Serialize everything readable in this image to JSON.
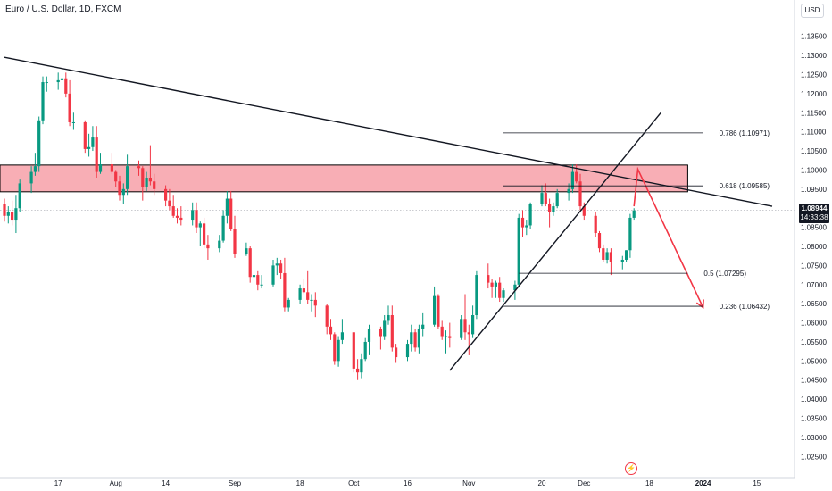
{
  "header": {
    "symbol_title": "Euro / U.S. Dollar, 1D, FXCM",
    "currency": "USD"
  },
  "price_tag": {
    "value": "1.08944",
    "countdown": "14:33:38"
  },
  "icons": {
    "flash": "lightning-icon"
  },
  "colors": {
    "bull": "#089981",
    "bear": "#f23645",
    "zone": "#f7a0a8",
    "arrow": "#f23645",
    "line": "#131722"
  },
  "chart_data": {
    "type": "candlestick",
    "title": "Euro / U.S. Dollar, 1D, FXCM",
    "ylim": [
      1.022,
      1.139
    ],
    "x_range": [
      "2023-07-03",
      "2024-01-19"
    ],
    "y_ticks": [
      "1.13500",
      "1.13000",
      "1.12500",
      "1.12000",
      "1.11500",
      "1.11000",
      "1.10500",
      "1.10000",
      "1.09500",
      "1.09000",
      "1.08500",
      "1.08000",
      "1.07500",
      "1.07000",
      "1.06500",
      "1.06000",
      "1.05500",
      "1.05000",
      "1.04500",
      "1.04000",
      "1.03500",
      "1.03000",
      "1.02500"
    ],
    "x_ticks": [
      {
        "label": "17",
        "date": "2023-07-17"
      },
      {
        "label": "Aug",
        "date": "2023-08-01"
      },
      {
        "label": "14",
        "date": "2023-08-14"
      },
      {
        "label": "Sep",
        "date": "2023-09-01"
      },
      {
        "label": "18",
        "date": "2023-09-18"
      },
      {
        "label": "Oct",
        "date": "2023-10-02"
      },
      {
        "label": "16",
        "date": "2023-10-16"
      },
      {
        "label": "Nov",
        "date": "2023-11-01"
      },
      {
        "label": "20",
        "date": "2023-11-20"
      },
      {
        "label": "Dec",
        "date": "2023-12-01"
      },
      {
        "label": "18",
        "date": "2023-12-18"
      },
      {
        "label": "2024",
        "date": "2024-01-01"
      },
      {
        "label": "15",
        "date": "2024-01-15"
      }
    ],
    "candles": [
      {
        "d": "2023-07-03",
        "o": 1.091,
        "h": 1.0925,
        "l": 1.0865,
        "c": 1.088
      },
      {
        "d": "2023-07-04",
        "o": 1.088,
        "h": 1.0905,
        "l": 1.086,
        "c": 1.089
      },
      {
        "d": "2023-07-05",
        "o": 1.089,
        "h": 1.092,
        "l": 1.0855,
        "c": 1.087
      },
      {
        "d": "2023-07-06",
        "o": 1.087,
        "h": 1.0935,
        "l": 1.0835,
        "c": 1.09
      },
      {
        "d": "2023-07-07",
        "o": 1.09,
        "h": 1.0975,
        "l": 1.089,
        "c": 1.0965
      },
      {
        "d": "2023-07-10",
        "o": 1.0965,
        "h": 1.101,
        "l": 1.094,
        "c": 1.0995
      },
      {
        "d": "2023-07-11",
        "o": 1.0995,
        "h": 1.1045,
        "l": 1.0985,
        "c": 1.101
      },
      {
        "d": "2023-07-12",
        "o": 1.101,
        "h": 1.114,
        "l": 1.0995,
        "c": 1.113
      },
      {
        "d": "2023-07-13",
        "o": 1.113,
        "h": 1.1245,
        "l": 1.112,
        "c": 1.123
      },
      {
        "d": "2023-07-14",
        "o": 1.123,
        "h": 1.1245,
        "l": 1.1205,
        "c": 1.123
      },
      {
        "d": "2023-07-17",
        "o": 1.123,
        "h": 1.1255,
        "l": 1.121,
        "c": 1.1235
      },
      {
        "d": "2023-07-18",
        "o": 1.1235,
        "h": 1.1275,
        "l": 1.1215,
        "c": 1.124
      },
      {
        "d": "2023-07-19",
        "o": 1.124,
        "h": 1.1255,
        "l": 1.119,
        "c": 1.12
      },
      {
        "d": "2023-07-20",
        "o": 1.12,
        "h": 1.1235,
        "l": 1.1115,
        "c": 1.1125
      },
      {
        "d": "2023-07-21",
        "o": 1.1125,
        "h": 1.115,
        "l": 1.1105,
        "c": 1.1125
      },
      {
        "d": "2023-07-24",
        "o": 1.1125,
        "h": 1.113,
        "l": 1.1045,
        "c": 1.1055
      },
      {
        "d": "2023-07-25",
        "o": 1.1055,
        "h": 1.1095,
        "l": 1.1035,
        "c": 1.106
      },
      {
        "d": "2023-07-26",
        "o": 1.106,
        "h": 1.1115,
        "l": 1.105,
        "c": 1.1085
      },
      {
        "d": "2023-07-27",
        "o": 1.1085,
        "h": 1.1115,
        "l": 1.098,
        "c": 1.0995
      },
      {
        "d": "2023-07-28",
        "o": 1.0995,
        "h": 1.1045,
        "l": 1.099,
        "c": 1.1015
      },
      {
        "d": "2023-07-31",
        "o": 1.1015,
        "h": 1.1045,
        "l": 1.099,
        "c": 1.0995
      },
      {
        "d": "2023-08-01",
        "o": 1.0995,
        "h": 1.1,
        "l": 1.0955,
        "c": 1.097
      },
      {
        "d": "2023-08-02",
        "o": 1.097,
        "h": 1.0985,
        "l": 1.092,
        "c": 1.0935
      },
      {
        "d": "2023-08-03",
        "o": 1.0935,
        "h": 1.0965,
        "l": 1.091,
        "c": 1.095
      },
      {
        "d": "2023-08-04",
        "o": 1.095,
        "h": 1.104,
        "l": 1.0935,
        "c": 1.101
      },
      {
        "d": "2023-08-07",
        "o": 1.101,
        "h": 1.1025,
        "l": 1.0985,
        "c": 1.1005
      },
      {
        "d": "2023-08-08",
        "o": 1.1005,
        "h": 1.101,
        "l": 1.092,
        "c": 1.0955
      },
      {
        "d": "2023-08-09",
        "o": 1.0955,
        "h": 1.0995,
        "l": 1.0945,
        "c": 1.098
      },
      {
        "d": "2023-08-10",
        "o": 1.098,
        "h": 1.1065,
        "l": 1.096,
        "c": 1.097
      },
      {
        "d": "2023-08-11",
        "o": 1.097,
        "h": 1.099,
        "l": 1.0935,
        "c": 1.095
      },
      {
        "d": "2023-08-14",
        "o": 1.095,
        "h": 1.096,
        "l": 1.0905,
        "c": 1.092
      },
      {
        "d": "2023-08-15",
        "o": 1.092,
        "h": 1.095,
        "l": 1.0895,
        "c": 1.0905
      },
      {
        "d": "2023-08-16",
        "o": 1.0905,
        "h": 1.0935,
        "l": 1.0875,
        "c": 1.088
      },
      {
        "d": "2023-08-17",
        "o": 1.088,
        "h": 1.09,
        "l": 1.086,
        "c": 1.0875
      },
      {
        "d": "2023-08-18",
        "o": 1.0875,
        "h": 1.0905,
        "l": 1.0855,
        "c": 1.087
      },
      {
        "d": "2023-08-21",
        "o": 1.087,
        "h": 1.0915,
        "l": 1.0855,
        "c": 1.0895
      },
      {
        "d": "2023-08-22",
        "o": 1.0895,
        "h": 1.0915,
        "l": 1.0835,
        "c": 1.085
      },
      {
        "d": "2023-08-23",
        "o": 1.085,
        "h": 1.0865,
        "l": 1.08,
        "c": 1.086
      },
      {
        "d": "2023-08-24",
        "o": 1.086,
        "h": 1.0875,
        "l": 1.0795,
        "c": 1.0805
      },
      {
        "d": "2023-08-25",
        "o": 1.0805,
        "h": 1.083,
        "l": 1.0765,
        "c": 1.0795
      },
      {
        "d": "2023-08-28",
        "o": 1.0795,
        "h": 1.083,
        "l": 1.0785,
        "c": 1.0815
      },
      {
        "d": "2023-08-29",
        "o": 1.0815,
        "h": 1.0895,
        "l": 1.081,
        "c": 1.088
      },
      {
        "d": "2023-08-30",
        "o": 1.088,
        "h": 1.0945,
        "l": 1.086,
        "c": 1.0925
      },
      {
        "d": "2023-08-31",
        "o": 1.0925,
        "h": 1.0945,
        "l": 1.084,
        "c": 1.0845
      },
      {
        "d": "2023-09-01",
        "o": 1.0845,
        "h": 1.088,
        "l": 1.077,
        "c": 1.078
      },
      {
        "d": "2023-09-04",
        "o": 1.078,
        "h": 1.081,
        "l": 1.0775,
        "c": 1.0795
      },
      {
        "d": "2023-09-05",
        "o": 1.0795,
        "h": 1.08,
        "l": 1.0705,
        "c": 1.072
      },
      {
        "d": "2023-09-06",
        "o": 1.072,
        "h": 1.0735,
        "l": 1.07,
        "c": 1.0725
      },
      {
        "d": "2023-09-07",
        "o": 1.0725,
        "h": 1.0735,
        "l": 1.0685,
        "c": 1.07
      },
      {
        "d": "2023-09-08",
        "o": 1.07,
        "h": 1.0725,
        "l": 1.069,
        "c": 1.07
      },
      {
        "d": "2023-09-11",
        "o": 1.07,
        "h": 1.0765,
        "l": 1.0695,
        "c": 1.075
      },
      {
        "d": "2023-09-12",
        "o": 1.075,
        "h": 1.077,
        "l": 1.0725,
        "c": 1.0755
      },
      {
        "d": "2023-09-13",
        "o": 1.0755,
        "h": 1.0765,
        "l": 1.0715,
        "c": 1.073
      },
      {
        "d": "2023-09-14",
        "o": 1.073,
        "h": 1.077,
        "l": 1.063,
        "c": 1.064
      },
      {
        "d": "2023-09-15",
        "o": 1.064,
        "h": 1.0665,
        "l": 1.063,
        "c": 1.066
      },
      {
        "d": "2023-09-18",
        "o": 1.066,
        "h": 1.07,
        "l": 1.065,
        "c": 1.069
      },
      {
        "d": "2023-09-19",
        "o": 1.069,
        "h": 1.0715,
        "l": 1.0675,
        "c": 1.068
      },
      {
        "d": "2023-09-20",
        "o": 1.068,
        "h": 1.0735,
        "l": 1.065,
        "c": 1.066
      },
      {
        "d": "2023-09-21",
        "o": 1.066,
        "h": 1.0675,
        "l": 1.063,
        "c": 1.066
      },
      {
        "d": "2023-09-22",
        "o": 1.066,
        "h": 1.068,
        "l": 1.0615,
        "c": 1.0645
      },
      {
        "d": "2023-09-25",
        "o": 1.0645,
        "h": 1.065,
        "l": 1.057,
        "c": 1.059
      },
      {
        "d": "2023-09-26",
        "o": 1.059,
        "h": 1.061,
        "l": 1.0555,
        "c": 1.057
      },
      {
        "d": "2023-09-27",
        "o": 1.057,
        "h": 1.0575,
        "l": 1.049,
        "c": 1.05
      },
      {
        "d": "2023-09-28",
        "o": 1.05,
        "h": 1.0565,
        "l": 1.0485,
        "c": 1.0555
      },
      {
        "d": "2023-09-29",
        "o": 1.0555,
        "h": 1.061,
        "l": 1.0545,
        "c": 1.0575
      },
      {
        "d": "2023-10-02",
        "o": 1.0575,
        "h": 1.0575,
        "l": 1.047,
        "c": 1.048
      },
      {
        "d": "2023-10-03",
        "o": 1.048,
        "h": 1.0505,
        "l": 1.045,
        "c": 1.047
      },
      {
        "d": "2023-10-04",
        "o": 1.047,
        "h": 1.052,
        "l": 1.0455,
        "c": 1.0505
      },
      {
        "d": "2023-10-05",
        "o": 1.0505,
        "h": 1.056,
        "l": 1.05,
        "c": 1.055
      },
      {
        "d": "2023-10-06",
        "o": 1.055,
        "h": 1.0595,
        "l": 1.0515,
        "c": 1.0585
      },
      {
        "d": "2023-10-09",
        "o": 1.0585,
        "h": 1.059,
        "l": 1.053,
        "c": 1.0565
      },
      {
        "d": "2023-10-10",
        "o": 1.0565,
        "h": 1.062,
        "l": 1.0555,
        "c": 1.0605
      },
      {
        "d": "2023-10-11",
        "o": 1.0605,
        "h": 1.0645,
        "l": 1.0595,
        "c": 1.062
      },
      {
        "d": "2023-10-12",
        "o": 1.062,
        "h": 1.0645,
        "l": 1.0525,
        "c": 1.0535
      },
      {
        "d": "2023-10-13",
        "o": 1.0535,
        "h": 1.0545,
        "l": 1.0495,
        "c": 1.051
      },
      {
        "d": "2023-10-16",
        "o": 1.051,
        "h": 1.0555,
        "l": 1.05,
        "c": 1.0545
      },
      {
        "d": "2023-10-17",
        "o": 1.0545,
        "h": 1.0595,
        "l": 1.0525,
        "c": 1.0575
      },
      {
        "d": "2023-10-18",
        "o": 1.0575,
        "h": 1.0585,
        "l": 1.0525,
        "c": 1.0535
      },
      {
        "d": "2023-10-19",
        "o": 1.0535,
        "h": 1.0595,
        "l": 1.052,
        "c": 1.0585
      },
      {
        "d": "2023-10-20",
        "o": 1.0585,
        "h": 1.0625,
        "l": 1.0565,
        "c": 1.0595
      },
      {
        "d": "2023-10-23",
        "o": 1.0595,
        "h": 1.0695,
        "l": 1.059,
        "c": 1.067
      },
      {
        "d": "2023-10-24",
        "o": 1.067,
        "h": 1.0675,
        "l": 1.0585,
        "c": 1.059
      },
      {
        "d": "2023-10-25",
        "o": 1.059,
        "h": 1.0605,
        "l": 1.0555,
        "c": 1.0565
      },
      {
        "d": "2023-10-26",
        "o": 1.0565,
        "h": 1.058,
        "l": 1.052,
        "c": 1.0565
      },
      {
        "d": "2023-10-27",
        "o": 1.0565,
        "h": 1.06,
        "l": 1.0535,
        "c": 1.056
      },
      {
        "d": "2023-10-30",
        "o": 1.056,
        "h": 1.062,
        "l": 1.0555,
        "c": 1.061
      },
      {
        "d": "2023-10-31",
        "o": 1.061,
        "h": 1.0675,
        "l": 1.0555,
        "c": 1.0575
      },
      {
        "d": "2023-11-01",
        "o": 1.0575,
        "h": 1.0595,
        "l": 1.0515,
        "c": 1.057
      },
      {
        "d": "2023-11-02",
        "o": 1.057,
        "h": 1.0645,
        "l": 1.056,
        "c": 1.062
      },
      {
        "d": "2023-11-03",
        "o": 1.062,
        "h": 1.0735,
        "l": 1.061,
        "c": 1.0725
      },
      {
        "d": "2023-11-06",
        "o": 1.0725,
        "h": 1.0755,
        "l": 1.069,
        "c": 1.0705
      },
      {
        "d": "2023-11-07",
        "o": 1.0705,
        "h": 1.0715,
        "l": 1.0665,
        "c": 1.0695
      },
      {
        "d": "2023-11-08",
        "o": 1.0695,
        "h": 1.071,
        "l": 1.0665,
        "c": 1.0705
      },
      {
        "d": "2023-11-09",
        "o": 1.0705,
        "h": 1.072,
        "l": 1.0655,
        "c": 1.0665
      },
      {
        "d": "2023-11-10",
        "o": 1.0665,
        "h": 1.069,
        "l": 1.0655,
        "c": 1.0685
      },
      {
        "d": "2023-11-13",
        "o": 1.0685,
        "h": 1.071,
        "l": 1.066,
        "c": 1.07
      },
      {
        "d": "2023-11-14",
        "o": 1.07,
        "h": 1.0885,
        "l": 1.0695,
        "c": 1.0875
      },
      {
        "d": "2023-11-15",
        "o": 1.0875,
        "h": 1.0895,
        "l": 1.0825,
        "c": 1.085
      },
      {
        "d": "2023-11-16",
        "o": 1.085,
        "h": 1.087,
        "l": 1.083,
        "c": 1.0855
      },
      {
        "d": "2023-11-17",
        "o": 1.0855,
        "h": 1.0915,
        "l": 1.0845,
        "c": 1.091
      },
      {
        "d": "2023-11-20",
        "o": 1.091,
        "h": 1.096,
        "l": 1.0905,
        "c": 1.094
      },
      {
        "d": "2023-11-21",
        "o": 1.094,
        "h": 1.0965,
        "l": 1.0905,
        "c": 1.091
      },
      {
        "d": "2023-11-22",
        "o": 1.091,
        "h": 1.0925,
        "l": 1.085,
        "c": 1.089
      },
      {
        "d": "2023-11-23",
        "o": 1.089,
        "h": 1.0915,
        "l": 1.088,
        "c": 1.0905
      },
      {
        "d": "2023-11-24",
        "o": 1.0905,
        "h": 1.095,
        "l": 1.09,
        "c": 1.094
      },
      {
        "d": "2023-11-27",
        "o": 1.094,
        "h": 1.0965,
        "l": 1.092,
        "c": 1.095
      },
      {
        "d": "2023-11-28",
        "o": 1.095,
        "h": 1.1015,
        "l": 1.094,
        "c": 1.0995
      },
      {
        "d": "2023-11-29",
        "o": 1.0995,
        "h": 1.1015,
        "l": 1.0965,
        "c": 1.097
      },
      {
        "d": "2023-11-30",
        "o": 1.097,
        "h": 1.099,
        "l": 1.0895,
        "c": 1.0905
      },
      {
        "d": "2023-12-01",
        "o": 1.0905,
        "h": 1.0915,
        "l": 1.087,
        "c": 1.088
      },
      {
        "d": "2023-12-04",
        "o": 1.088,
        "h": 1.089,
        "l": 1.0825,
        "c": 1.0835
      },
      {
        "d": "2023-12-05",
        "o": 1.0835,
        "h": 1.084,
        "l": 1.0785,
        "c": 1.0795
      },
      {
        "d": "2023-12-06",
        "o": 1.0795,
        "h": 1.0805,
        "l": 1.076,
        "c": 1.0765
      },
      {
        "d": "2023-12-07",
        "o": 1.0765,
        "h": 1.0795,
        "l": 1.0755,
        "c": 1.0785
      },
      {
        "d": "2023-12-08",
        "o": 1.0785,
        "h": 1.0795,
        "l": 1.0725,
        "c": 1.076
      },
      {
        "d": "2023-12-11",
        "o": 1.076,
        "h": 1.0775,
        "l": 1.074,
        "c": 1.0765
      },
      {
        "d": "2023-12-12",
        "o": 1.0765,
        "h": 1.079,
        "l": 1.076,
        "c": 1.079
      },
      {
        "d": "2023-12-13",
        "o": 1.079,
        "h": 1.0885,
        "l": 1.077,
        "c": 1.0875
      },
      {
        "d": "2023-12-14",
        "o": 1.0875,
        "h": 1.09,
        "l": 1.087,
        "c": 1.0894
      }
    ],
    "zone": {
      "label": "resistance-zone",
      "y_top": 1.1013,
      "y_bottom": 1.0943,
      "x_start": "2023-07-03",
      "x_end": "2023-12-28"
    },
    "lines": [
      {
        "name": "descending-trendline",
        "x1": "2023-07-03",
        "y1": 1.1295,
        "x2": "2024-01-19",
        "y2": 1.0905
      },
      {
        "name": "ascending-trendline",
        "x1": "2023-10-27",
        "y1": 1.0475,
        "x2": "2023-12-21",
        "y2": 1.115
      }
    ],
    "fib_levels": [
      {
        "label": "0.786 (1.10971)",
        "value": 1.10971,
        "x_start": "2023-11-10",
        "x_end": "2024-01-01"
      },
      {
        "label": "0.618 (1.09585)",
        "value": 1.09585,
        "x_start": "2023-11-10",
        "x_end": "2024-01-01"
      },
      {
        "label": "0.5 (1.07295)",
        "value": 1.07295,
        "x_start": "2023-11-14",
        "x_end": "2023-12-28"
      },
      {
        "label": "0.236 (1.06432)",
        "value": 1.06432,
        "x_start": "2023-11-10",
        "x_end": "2024-01-01"
      }
    ],
    "projection": [
      {
        "d": "2023-12-14",
        "v": 1.0905
      },
      {
        "d": "2023-12-15",
        "v": 1.1002
      },
      {
        "d": "2024-01-01",
        "v": 1.064
      }
    ],
    "last_price": 1.08944
  }
}
